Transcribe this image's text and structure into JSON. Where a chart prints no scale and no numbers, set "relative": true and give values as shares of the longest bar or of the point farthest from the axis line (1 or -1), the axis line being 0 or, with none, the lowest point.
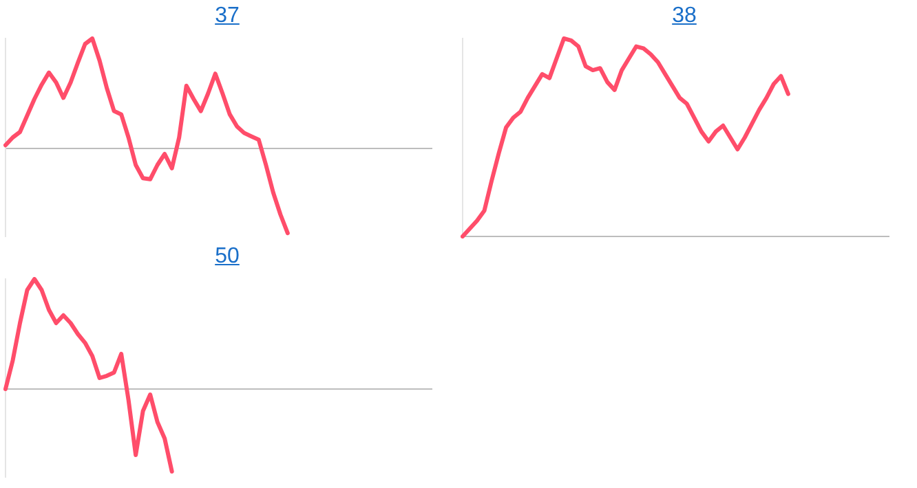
{
  "chart_data": [
    {
      "type": "line",
      "title": "37",
      "relative": true,
      "legend": false,
      "marker": "none",
      "line_style": "solid",
      "categories": [
        null,
        null,
        null,
        null,
        null,
        null,
        null,
        null,
        null,
        null,
        null,
        null,
        null,
        null,
        null,
        null,
        null,
        null,
        null,
        null,
        null,
        null,
        null,
        null,
        null,
        null,
        null,
        null,
        null,
        null,
        null,
        null,
        null,
        null,
        null,
        null,
        null,
        null,
        null,
        null,
        null,
        null,
        null,
        null,
        null,
        null,
        null,
        null,
        null,
        null,
        null,
        null,
        null,
        null,
        null,
        null,
        null,
        null,
        null,
        null
      ],
      "series": [
        {
          "color": "#ff4d6a",
          "values": [
            0.03,
            0.1,
            0.15,
            0.3,
            0.45,
            0.58,
            0.69,
            0.6,
            0.46,
            0.6,
            0.78,
            0.95,
            1.0,
            0.8,
            0.55,
            0.34,
            0.31,
            0.1,
            -0.15,
            -0.27,
            -0.28,
            -0.15,
            -0.05,
            -0.18,
            0.1,
            0.57,
            0.45,
            0.34,
            0.5,
            0.68,
            0.5,
            0.31,
            0.2,
            0.14,
            0.11,
            0.08,
            -0.15,
            -0.4,
            -0.6,
            -0.77,
            null,
            null,
            null,
            null,
            null,
            null,
            null,
            null,
            null,
            null,
            null,
            null,
            null,
            null,
            null,
            null,
            null,
            null,
            null,
            null
          ]
        }
      ]
    },
    {
      "type": "line",
      "title": "38",
      "relative": true,
      "legend": false,
      "marker": "none",
      "line_style": "solid",
      "categories": [
        null,
        null,
        null,
        null,
        null,
        null,
        null,
        null,
        null,
        null,
        null,
        null,
        null,
        null,
        null,
        null,
        null,
        null,
        null,
        null,
        null,
        null,
        null,
        null,
        null,
        null,
        null,
        null,
        null,
        null,
        null,
        null,
        null,
        null,
        null,
        null,
        null,
        null,
        null,
        null,
        null,
        null,
        null,
        null,
        null,
        null,
        null,
        null,
        null,
        null,
        null,
        null,
        null,
        null,
        null,
        null,
        null,
        null,
        null,
        null
      ],
      "series": [
        {
          "color": "#ff4d6a",
          "values": [
            0,
            0.04,
            0.08,
            0.13,
            0.28,
            0.42,
            0.55,
            0.6,
            0.63,
            0.7,
            0.76,
            0.82,
            0.8,
            0.9,
            1.0,
            0.99,
            0.96,
            0.86,
            0.84,
            0.85,
            0.78,
            0.74,
            0.84,
            0.9,
            0.96,
            0.95,
            0.92,
            0.88,
            0.82,
            0.76,
            0.7,
            0.67,
            0.6,
            0.53,
            0.48,
            0.53,
            0.56,
            0.5,
            0.44,
            0.5,
            0.57,
            0.64,
            0.7,
            0.77,
            0.81,
            0.72,
            null,
            null,
            null,
            null,
            null,
            null,
            null,
            null,
            null,
            null,
            null,
            null,
            null,
            null
          ]
        }
      ]
    },
    {
      "type": "line",
      "title": "50",
      "relative": true,
      "legend": false,
      "marker": "none",
      "line_style": "solid",
      "categories": [
        null,
        null,
        null,
        null,
        null,
        null,
        null,
        null,
        null,
        null,
        null,
        null,
        null,
        null,
        null,
        null,
        null,
        null,
        null,
        null,
        null,
        null,
        null,
        null,
        null,
        null,
        null,
        null,
        null,
        null,
        null,
        null,
        null,
        null,
        null,
        null,
        null,
        null,
        null,
        null,
        null,
        null,
        null,
        null,
        null,
        null,
        null,
        null,
        null,
        null,
        null,
        null,
        null,
        null,
        null,
        null,
        null,
        null,
        null,
        null
      ],
      "series": [
        {
          "color": "#ff4d6a",
          "values": [
            0,
            0.26,
            0.6,
            0.9,
            1.0,
            0.9,
            0.72,
            0.6,
            0.67,
            0.6,
            0.5,
            0.42,
            0.3,
            0.1,
            0.12,
            0.15,
            0.32,
            -0.1,
            -0.6,
            -0.2,
            -0.05,
            -0.3,
            -0.45,
            -0.75,
            null,
            null,
            null,
            null,
            null,
            null,
            null,
            null,
            null,
            null,
            null,
            null,
            null,
            null,
            null,
            null,
            null,
            null,
            null,
            null,
            null,
            null,
            null,
            null,
            null,
            null,
            null,
            null,
            null,
            null,
            null,
            null,
            null,
            null,
            null,
            null
          ]
        }
      ]
    }
  ]
}
